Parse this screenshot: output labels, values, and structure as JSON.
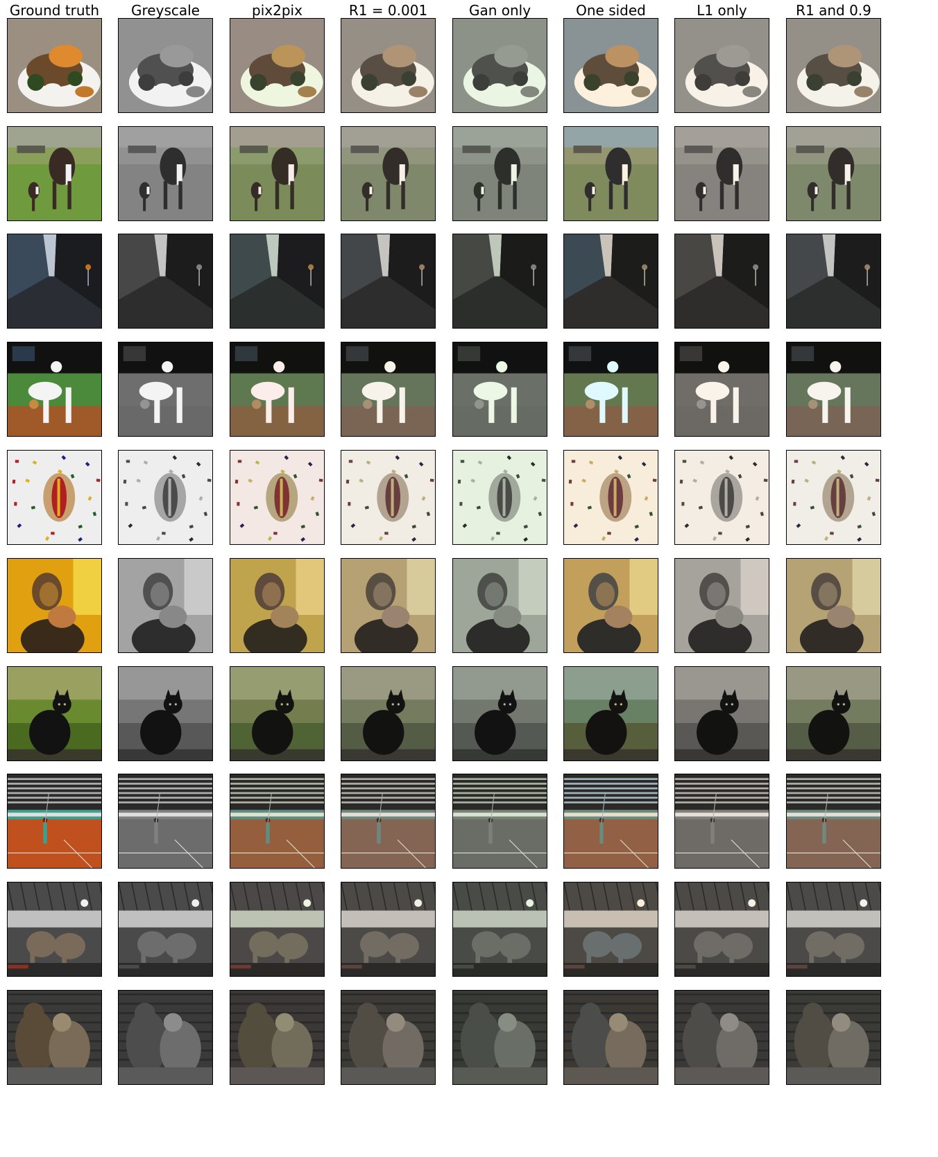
{
  "columns": [
    {
      "title": "Ground truth",
      "mode": "gt"
    },
    {
      "title": "Greyscale",
      "mode": "grey"
    },
    {
      "title": "pix2pix",
      "mode": "p2p"
    },
    {
      "title": "R1 = 0.001",
      "mode": "r1"
    },
    {
      "title": "Gan only",
      "mode": "gan"
    },
    {
      "title": "One sided",
      "mode": "one"
    },
    {
      "title": "L1 only",
      "mode": "l1"
    },
    {
      "title": "R1 and 0.9",
      "mode": "r19"
    }
  ],
  "rows": [
    {
      "scene": "food-plate",
      "gt_colors": [
        "#9a8f80",
        "#f4f2ee",
        "#6b4a2c",
        "#c27a2a",
        "#2f4a20",
        "#e08a30"
      ]
    },
    {
      "scene": "cows-field",
      "gt_colors": [
        "#8aa05a",
        "#6f9a3e",
        "#3a2a24",
        "#f2f2f2",
        "#5a5a4e",
        "#9fa490"
      ]
    },
    {
      "scene": "city-street",
      "gt_colors": [
        "#0f1012",
        "#3a4a5a",
        "#1a1c20",
        "#bcc6d2",
        "#c2731a",
        "#2a2e34"
      ]
    },
    {
      "scene": "baseball-fielder",
      "gt_colors": [
        "#111111",
        "#4a8a3a",
        "#a05a2a",
        "#f4f4f4",
        "#2a3a4a",
        "#c88a40"
      ]
    },
    {
      "scene": "confetti-hotdog",
      "gt_colors": [
        "#eeeeee",
        "#c8a070",
        "#b02020",
        "#e0b020",
        "#202080",
        "#206020"
      ]
    },
    {
      "scene": "person-eating",
      "gt_colors": [
        "#e0a010",
        "#6a4a2a",
        "#c07a40",
        "#f0d040",
        "#3a2a1a",
        "#a07030"
      ]
    },
    {
      "scene": "black-cat-grass",
      "gt_colors": [
        "#6a8a30",
        "#4a6a20",
        "#121212",
        "#9aa060",
        "#c0b870",
        "#3a3a2a"
      ]
    },
    {
      "scene": "tennis-player",
      "gt_colors": [
        "#c0501e",
        "#2a2a2a",
        "#b0b0b0",
        "#3aa090",
        "#e0e0e0",
        "#702010"
      ]
    },
    {
      "scene": "elephants-arena",
      "gt_colors": [
        "#4a4a4a",
        "#7a6a5a",
        "#2a2a2a",
        "#c0c0c0",
        "#8a3020",
        "#f0f0f0"
      ]
    },
    {
      "scene": "bears-water",
      "gt_colors": [
        "#5a4a38",
        "#3a3a38",
        "#7a6a58",
        "#2a2a2a",
        "#9a8a70",
        "#5a5a58"
      ]
    }
  ]
}
